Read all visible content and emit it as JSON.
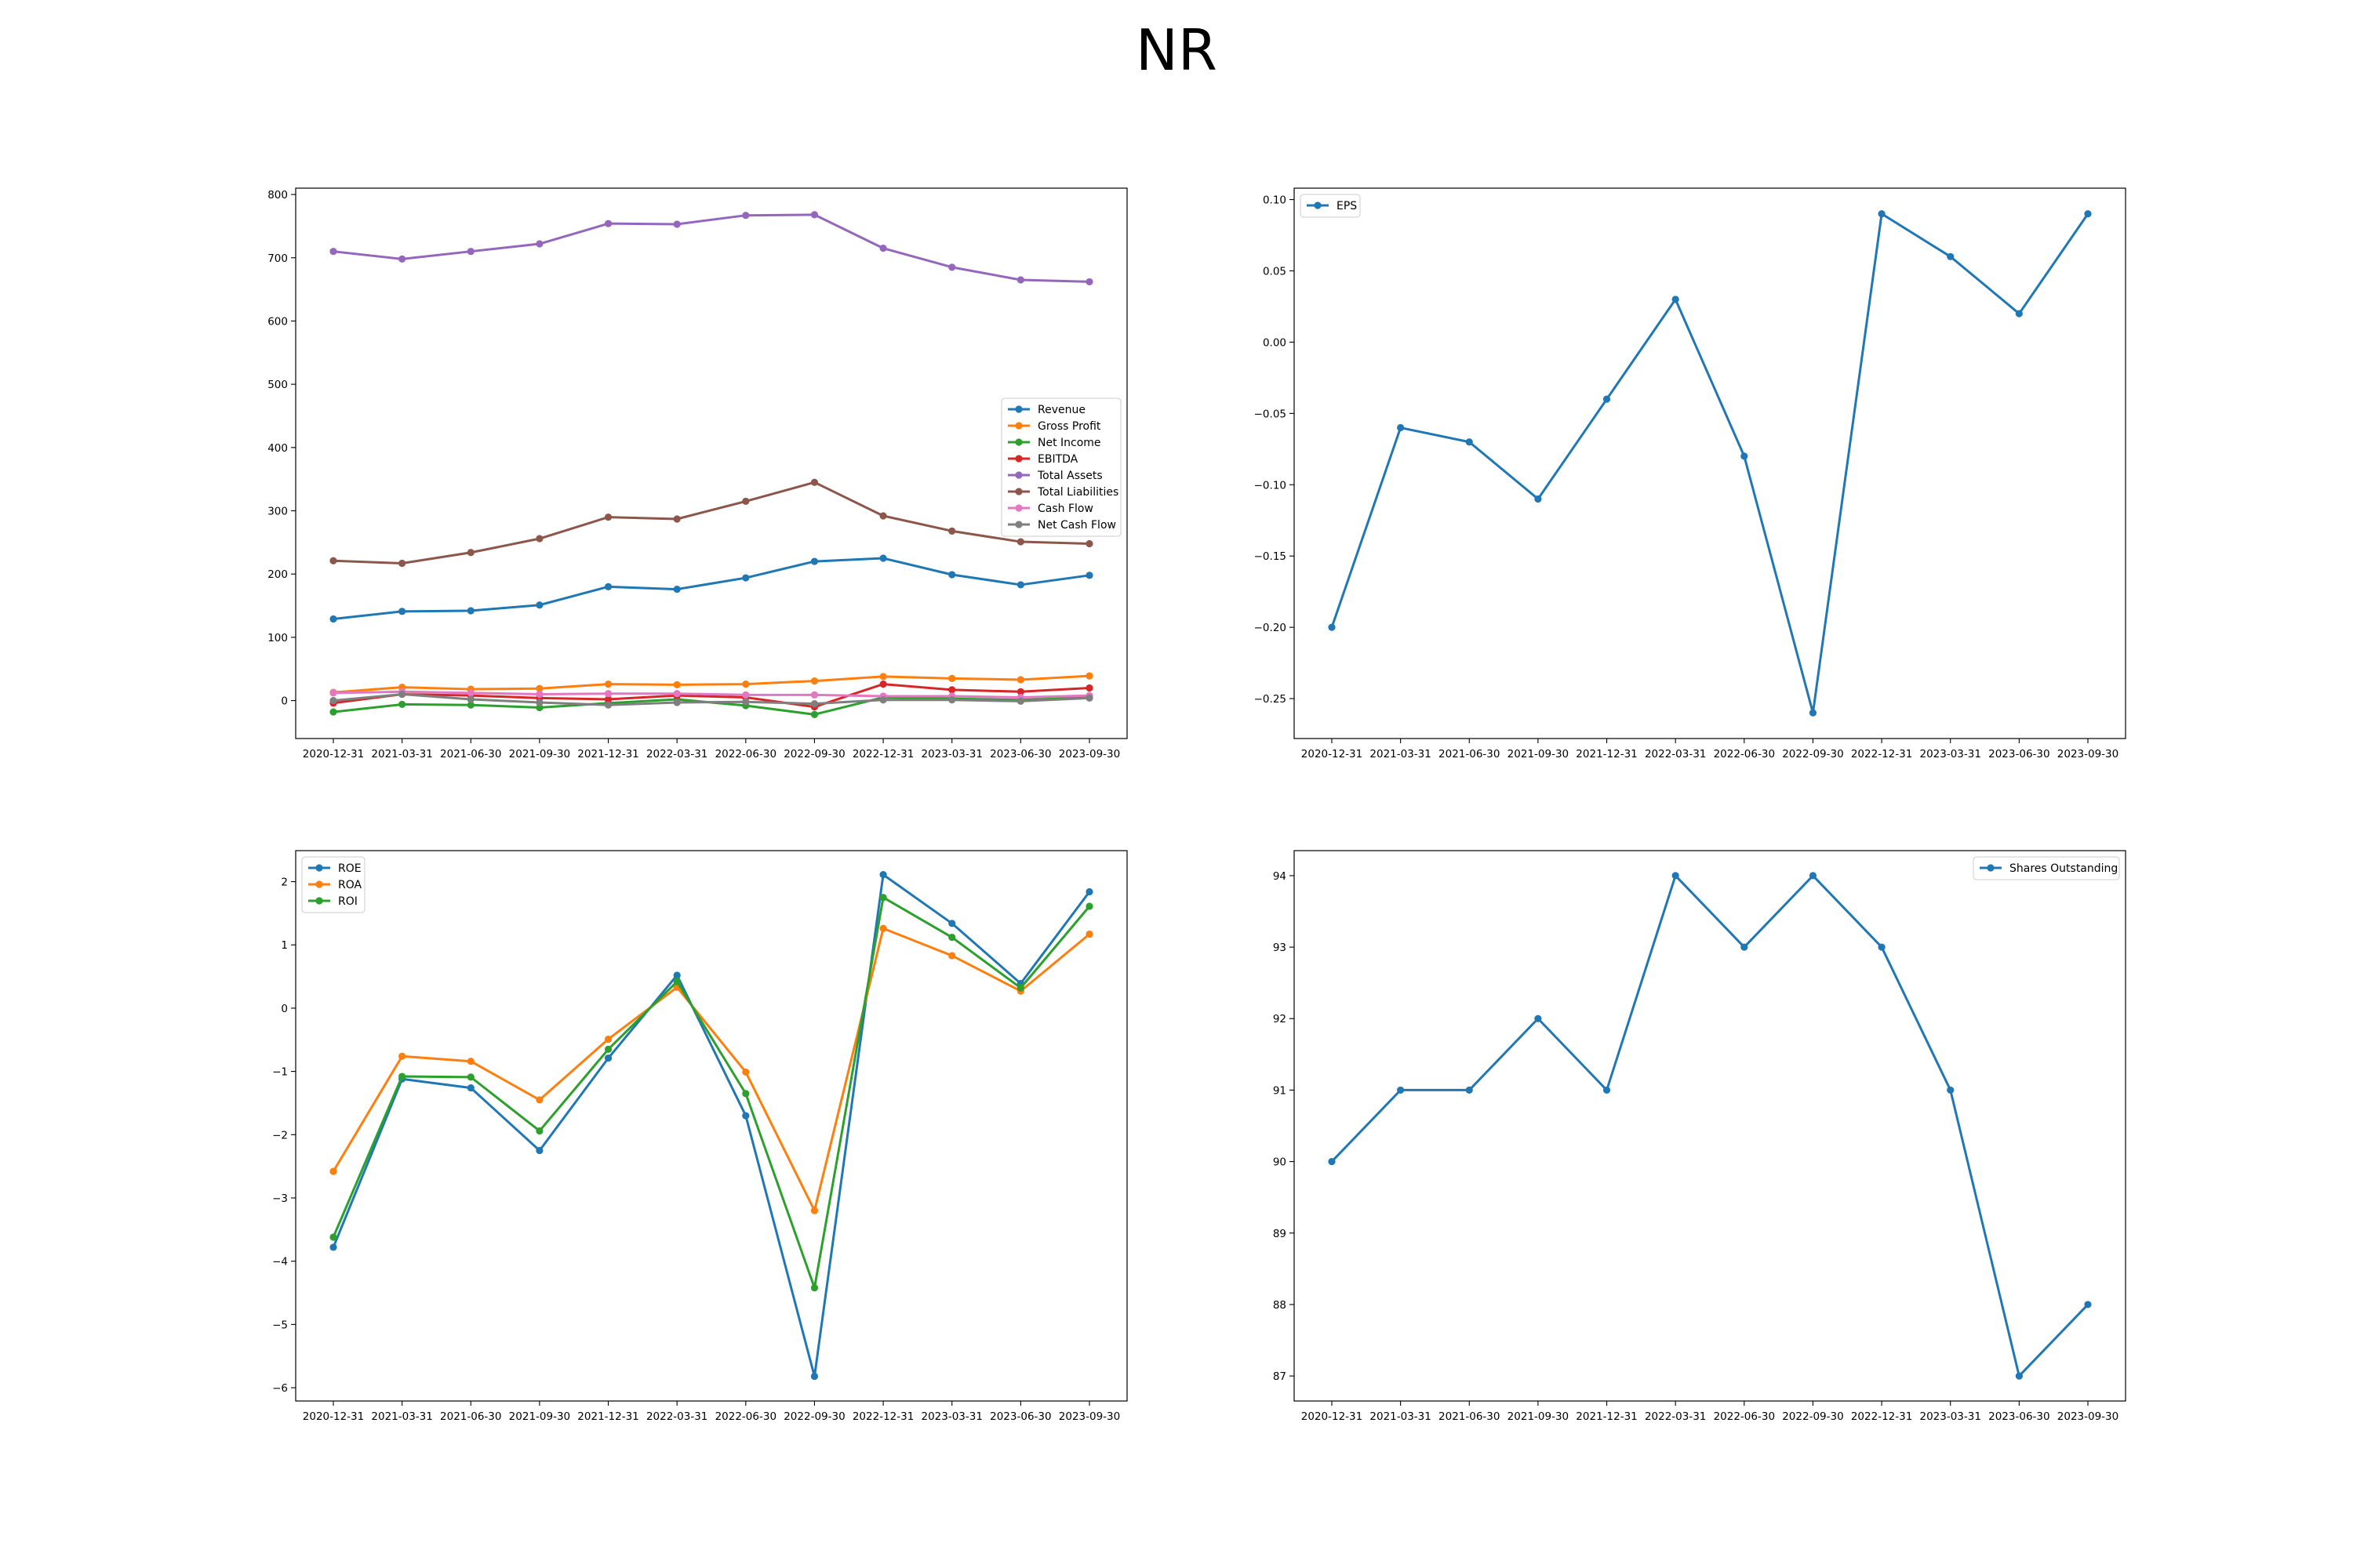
{
  "title": "NR",
  "chart_data": [
    {
      "type": "line",
      "x": [
        "2020-12-31",
        "2021-03-31",
        "2021-06-30",
        "2021-09-30",
        "2021-12-31",
        "2022-03-31",
        "2022-06-30",
        "2022-09-30",
        "2022-12-31",
        "2023-03-31",
        "2023-06-30",
        "2023-09-30"
      ],
      "ylim": [
        -60,
        810
      ],
      "yticks": [
        0,
        100,
        200,
        300,
        400,
        500,
        600,
        700,
        800
      ],
      "legend": "center-right",
      "series": [
        {
          "name": "Revenue",
          "color": "#1f77b4",
          "values": [
            129,
            141,
            142,
            151,
            180,
            176,
            194,
            220,
            225,
            199,
            183,
            198
          ]
        },
        {
          "name": "Gross Profit",
          "color": "#ff7f0e",
          "values": [
            13,
            21,
            18,
            19,
            26,
            25,
            26,
            31,
            38,
            35,
            33,
            39
          ]
        },
        {
          "name": "Net Income",
          "color": "#2ca02c",
          "values": [
            -18,
            -6,
            -7,
            -11,
            -4,
            2,
            -8,
            -22,
            5,
            3,
            1,
            5
          ]
        },
        {
          "name": "EBITDA",
          "color": "#d62728",
          "values": [
            -4,
            10,
            8,
            4,
            2,
            8,
            5,
            -10,
            26,
            17,
            14,
            20
          ]
        },
        {
          "name": "Total Assets",
          "color": "#9467bd",
          "values": [
            710,
            698,
            710,
            722,
            754,
            753,
            767,
            768,
            715,
            685,
            665,
            662
          ]
        },
        {
          "name": "Total Liabilities",
          "color": "#8c564b",
          "values": [
            221,
            217,
            234,
            256,
            290,
            287,
            315,
            345,
            292,
            268,
            251,
            248
          ]
        },
        {
          "name": "Cash Flow",
          "color": "#e377c2",
          "values": [
            12,
            14,
            12,
            10,
            11,
            11,
            9,
            9,
            7,
            7,
            5,
            8
          ]
        },
        {
          "name": "Net Cash Flow",
          "color": "#7f7f7f",
          "values": [
            0,
            10,
            2,
            -3,
            -7,
            -3,
            -2,
            -5,
            1,
            1,
            -1,
            4
          ]
        }
      ]
    },
    {
      "type": "line",
      "x": [
        "2020-12-31",
        "2021-03-31",
        "2021-06-30",
        "2021-09-30",
        "2021-12-31",
        "2022-03-31",
        "2022-06-30",
        "2022-09-30",
        "2022-12-31",
        "2023-03-31",
        "2023-06-30",
        "2023-09-30"
      ],
      "ylim": [
        -0.278,
        0.108
      ],
      "yticks": [
        -0.25,
        -0.2,
        -0.15,
        -0.1,
        -0.05,
        0.0,
        0.05,
        0.1
      ],
      "ytick_labels": [
        "−0.25",
        "−0.20",
        "−0.15",
        "−0.10",
        "−0.05",
        "0.00",
        "0.05",
        "0.10"
      ],
      "legend": "top-left",
      "series": [
        {
          "name": "EPS",
          "color": "#1f77b4",
          "values": [
            -0.2,
            -0.06,
            -0.07,
            -0.11,
            -0.04,
            0.03,
            -0.08,
            -0.26,
            0.09,
            0.06,
            0.02,
            0.09
          ]
        }
      ]
    },
    {
      "type": "line",
      "x": [
        "2020-12-31",
        "2021-03-31",
        "2021-06-30",
        "2021-09-30",
        "2021-12-31",
        "2022-03-31",
        "2022-06-30",
        "2022-09-30",
        "2022-12-31",
        "2023-03-31",
        "2023-06-30",
        "2023-09-30"
      ],
      "ylim": [
        -6.21,
        2.49
      ],
      "yticks": [
        -6,
        -5,
        -4,
        -3,
        -2,
        -1,
        0,
        1,
        2
      ],
      "ytick_labels": [
        "−6",
        "−5",
        "−4",
        "−3",
        "−2",
        "−1",
        "0",
        "1",
        "2"
      ],
      "legend": "top-left",
      "series": [
        {
          "name": "ROE",
          "color": "#1f77b4",
          "values": [
            -3.78,
            -1.12,
            -1.26,
            -2.25,
            -0.79,
            0.52,
            -1.7,
            -5.82,
            2.11,
            1.34,
            0.39,
            1.84
          ]
        },
        {
          "name": "ROA",
          "color": "#ff7f0e",
          "values": [
            -2.58,
            -0.76,
            -0.84,
            -1.45,
            -0.49,
            0.33,
            -1.01,
            -3.2,
            1.26,
            0.83,
            0.27,
            1.17
          ]
        },
        {
          "name": "ROI",
          "color": "#2ca02c",
          "values": [
            -3.62,
            -1.08,
            -1.09,
            -1.94,
            -0.65,
            0.42,
            -1.35,
            -4.42,
            1.75,
            1.12,
            0.32,
            1.61
          ]
        }
      ]
    },
    {
      "type": "line",
      "x": [
        "2020-12-31",
        "2021-03-31",
        "2021-06-30",
        "2021-09-30",
        "2021-12-31",
        "2022-03-31",
        "2022-06-30",
        "2022-09-30",
        "2022-12-31",
        "2023-03-31",
        "2023-06-30",
        "2023-09-30"
      ],
      "ylim": [
        86.65,
        94.35
      ],
      "yticks": [
        87,
        88,
        89,
        90,
        91,
        92,
        93,
        94
      ],
      "legend": "top-right",
      "series": [
        {
          "name": "Shares Outstanding",
          "color": "#1f77b4",
          "values": [
            90,
            91,
            91,
            92,
            91,
            94,
            93,
            94,
            93,
            91,
            87,
            88
          ]
        }
      ]
    }
  ]
}
